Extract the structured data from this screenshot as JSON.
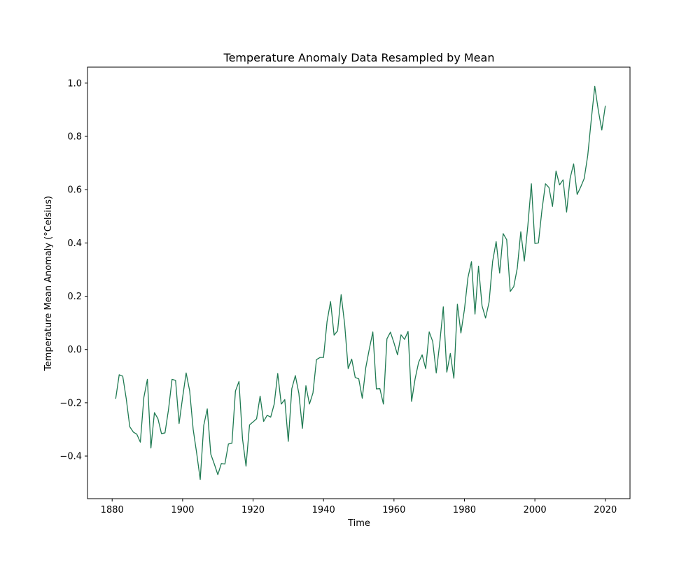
{
  "chart_data": {
    "type": "line",
    "title": "Temperature Anomaly Data Resampled by Mean",
    "xlabel": "Time",
    "ylabel": "Temperature Mean Anomaly (°Celsius)",
    "xlim": [
      1873,
      2027
    ],
    "ylim": [
      -0.56,
      1.06
    ],
    "x_ticks": [
      1880,
      1900,
      1920,
      1940,
      1960,
      1980,
      2000,
      2020
    ],
    "y_ticks": [
      -0.4,
      -0.2,
      0.0,
      0.2,
      0.4,
      0.6,
      0.8,
      1.0
    ],
    "y_tick_labels": [
      "−0.4",
      "−0.2",
      "0.0",
      "0.2",
      "0.4",
      "0.6",
      "0.8",
      "1.0"
    ],
    "grid": false,
    "legend": "none",
    "line_color": "#1f7a52",
    "series": [
      {
        "x": [
          1881,
          1882,
          1883,
          1884,
          1885,
          1886,
          1887,
          1888,
          1889,
          1890,
          1891,
          1892,
          1893,
          1894,
          1895,
          1896,
          1897,
          1898,
          1899,
          1900,
          1901,
          1902,
          1903,
          1904,
          1905,
          1906,
          1907,
          1908,
          1909,
          1910,
          1911,
          1912,
          1913,
          1914,
          1915,
          1916,
          1917,
          1918,
          1919,
          1920,
          1921,
          1922,
          1923,
          1924,
          1925,
          1926,
          1927,
          1928,
          1929,
          1930,
          1931,
          1932,
          1933,
          1934,
          1935,
          1936,
          1937,
          1938,
          1939,
          1940,
          1941,
          1942,
          1943,
          1944,
          1945,
          1946,
          1947,
          1948,
          1949,
          1950,
          1951,
          1952,
          1953,
          1954,
          1955,
          1956,
          1957,
          1958,
          1959,
          1960,
          1961,
          1962,
          1963,
          1964,
          1965,
          1966,
          1967,
          1968,
          1969,
          1970,
          1971,
          1972,
          1973,
          1974,
          1975,
          1976,
          1977,
          1978,
          1979,
          1980,
          1981,
          1982,
          1983,
          1984,
          1985,
          1986,
          1987,
          1988,
          1989,
          1990,
          1991,
          1992,
          1993,
          1994,
          1995,
          1996,
          1997,
          1998,
          1999,
          2000,
          2001,
          2002,
          2003,
          2004,
          2005,
          2006,
          2007,
          2008,
          2009,
          2010,
          2011,
          2012,
          2013,
          2014,
          2015,
          2016,
          2017,
          2018,
          2019,
          2020
        ],
        "y": [
          -0.185,
          -0.095,
          -0.1,
          -0.185,
          -0.29,
          -0.31,
          -0.318,
          -0.348,
          -0.18,
          -0.112,
          -0.37,
          -0.237,
          -0.26,
          -0.316,
          -0.313,
          -0.225,
          -0.112,
          -0.116,
          -0.278,
          -0.18,
          -0.088,
          -0.155,
          -0.3,
          -0.39,
          -0.488,
          -0.285,
          -0.223,
          -0.393,
          -0.43,
          -0.47,
          -0.428,
          -0.43,
          -0.355,
          -0.352,
          -0.156,
          -0.12,
          -0.335,
          -0.438,
          -0.283,
          -0.272,
          -0.26,
          -0.175,
          -0.27,
          -0.247,
          -0.254,
          -0.205,
          -0.09,
          -0.205,
          -0.188,
          -0.345,
          -0.147,
          -0.098,
          -0.165,
          -0.296,
          -0.136,
          -0.205,
          -0.163,
          -0.038,
          -0.03,
          -0.03,
          0.105,
          0.18,
          0.054,
          0.07,
          0.206,
          0.095,
          -0.072,
          -0.036,
          -0.105,
          -0.11,
          -0.183,
          -0.068,
          0.002,
          0.066,
          -0.148,
          -0.147,
          -0.205,
          0.04,
          0.065,
          0.025,
          -0.02,
          0.055,
          0.038,
          0.068,
          -0.195,
          -0.11,
          -0.048,
          -0.02,
          -0.072,
          0.066,
          0.03,
          -0.088,
          0.025,
          0.16,
          -0.085,
          -0.015,
          -0.108,
          0.17,
          0.062,
          0.15,
          0.27,
          0.33,
          0.133,
          0.313,
          0.164,
          0.118,
          0.178,
          0.33,
          0.405,
          0.287,
          0.435,
          0.412,
          0.218,
          0.236,
          0.305,
          0.442,
          0.332,
          0.465,
          0.622,
          0.398,
          0.4,
          0.523,
          0.622,
          0.608,
          0.537,
          0.67,
          0.618,
          0.637,
          0.516,
          0.643,
          0.697,
          0.582,
          0.61,
          0.642,
          0.728,
          0.862,
          0.988,
          0.898,
          0.824,
          0.915
        ]
      }
    ]
  }
}
